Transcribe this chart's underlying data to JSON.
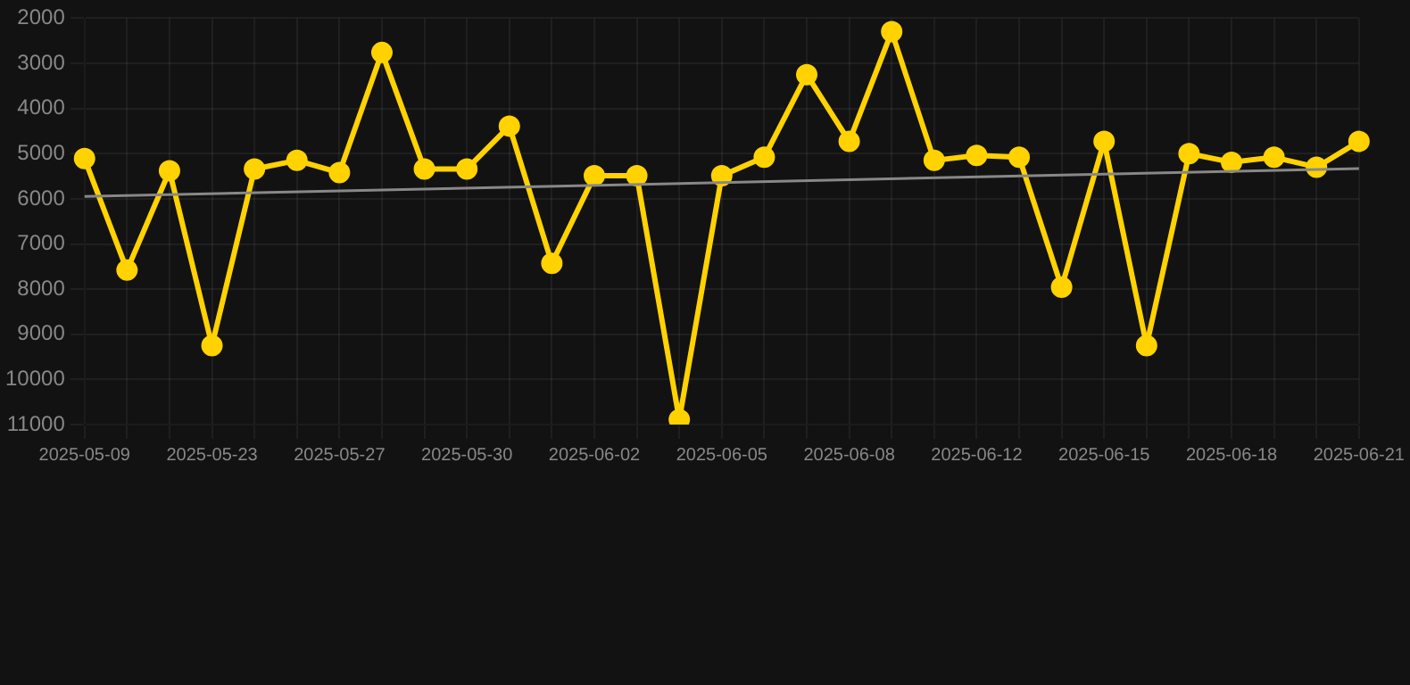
{
  "chart_data": {
    "type": "line",
    "categories": [
      "2025-05-09",
      null,
      null,
      "2025-05-23",
      null,
      null,
      "2025-05-27",
      null,
      null,
      "2025-05-30",
      null,
      null,
      "2025-06-02",
      null,
      null,
      "2025-06-05",
      null,
      null,
      "2025-06-08",
      null,
      null,
      "2025-06-12",
      null,
      null,
      "2025-06-15",
      null,
      null,
      "2025-06-18",
      null,
      null,
      "2025-06-21"
    ],
    "series": [
      {
        "type": "line",
        "color": "#ffd200",
        "marker": "circle",
        "values": [
          5110,
          7580,
          5380,
          9250,
          5340,
          5150,
          5420,
          2760,
          5340,
          5340,
          4390,
          7430,
          5490,
          5490,
          10890,
          5490,
          5080,
          3250,
          4730,
          2300,
          5150,
          5040,
          5080,
          7960,
          4730,
          9250,
          5000,
          5190,
          5080,
          5300,
          4730
        ]
      },
      {
        "type": "line",
        "color": "#888888",
        "marker": "none",
        "values": [
          5950,
          null,
          null,
          null,
          null,
          null,
          null,
          null,
          null,
          null,
          null,
          null,
          null,
          null,
          null,
          null,
          null,
          null,
          null,
          null,
          null,
          null,
          null,
          null,
          null,
          null,
          null,
          null,
          null,
          null,
          5330
        ]
      }
    ],
    "ylim": [
      11000,
      2000
    ],
    "yticks": [
      2000,
      3000,
      4000,
      5000,
      6000,
      7000,
      8000,
      9000,
      10000,
      11000
    ],
    "grid": true,
    "legend": false
  }
}
